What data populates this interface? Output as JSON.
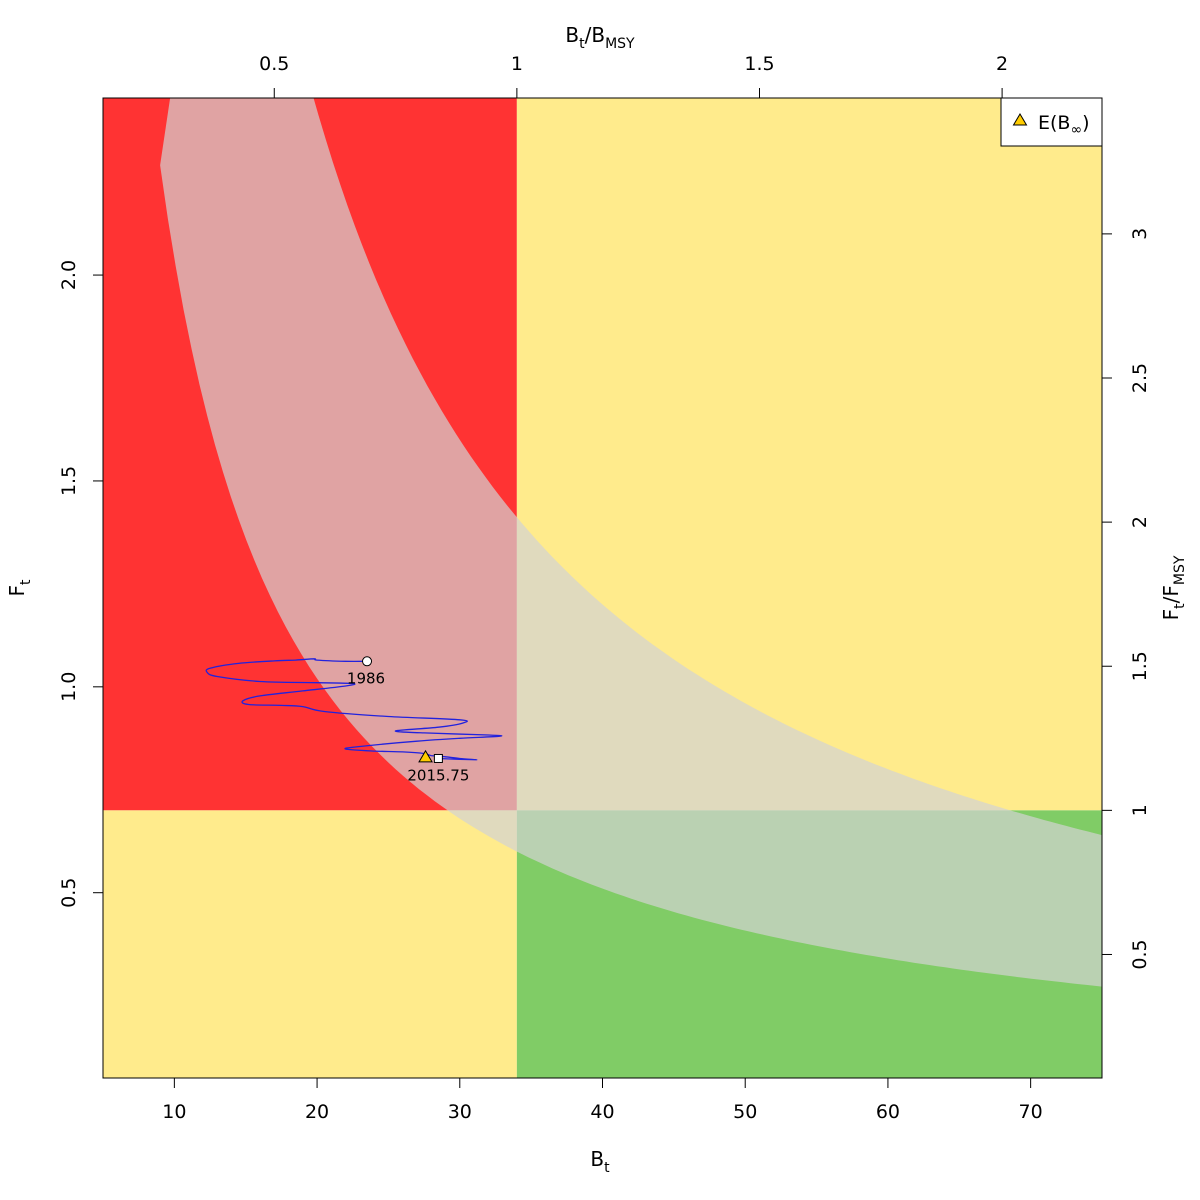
{
  "chart_data": {
    "type": "scatter",
    "title": "",
    "x_bottom": {
      "label_main": "B",
      "label_sub": "t",
      "range": [
        5,
        75
      ],
      "ticks": [
        10,
        20,
        30,
        40,
        50,
        60,
        70
      ],
      "tick_labels": [
        "10",
        "20",
        "30",
        "40",
        "50",
        "60",
        "70"
      ]
    },
    "y_left": {
      "label_main": "F",
      "label_sub": "t",
      "range": [
        0.05,
        2.43
      ],
      "ticks": [
        0.5,
        1.0,
        1.5,
        2.0
      ],
      "tick_labels": [
        "0.5",
        "1.0",
        "1.5",
        "2.0"
      ]
    },
    "x_top": {
      "label_main": "B",
      "label_sub1": "t",
      "label_slash": "/B",
      "label_sub2": "MSY",
      "ticks": [
        0.5,
        1,
        1.5,
        2
      ],
      "tick_labels": [
        "0.5",
        "1",
        "1.5",
        "2"
      ]
    },
    "y_right": {
      "label_main": "F",
      "label_sub1": "t",
      "label_slash": "/F",
      "label_sub2": "MSY",
      "ticks": [
        0.5,
        1,
        1.5,
        2,
        2.5,
        3
      ],
      "tick_labels": [
        "0.5",
        "1",
        "1.5",
        "2",
        "2.5",
        "3"
      ]
    },
    "reference_points": {
      "Bmsy": 34.0,
      "Fmsy": 0.7
    },
    "zones": {
      "overfished_overfishing": "#ff3333",
      "caution": "#ffeb8c",
      "healthy": "#80cc66"
    },
    "msy_band": {
      "color": "#d3d3d3",
      "opacity": 0.7,
      "upper_constant": 48.0,
      "lower_constant": 20.4,
      "x_upper_start": 14.0,
      "x_lower_start": 9.0,
      "x_end": 75
    },
    "trajectory": {
      "color": "#2222dd",
      "points": [
        [
          23.5,
          1.062
        ],
        [
          22.0,
          1.062
        ],
        [
          20.0,
          1.065
        ],
        [
          19.8,
          1.068
        ],
        [
          18.5,
          1.065
        ],
        [
          17.0,
          1.063
        ],
        [
          14.5,
          1.057
        ],
        [
          12.5,
          1.045
        ],
        [
          12.3,
          1.035
        ],
        [
          13.0,
          1.025
        ],
        [
          16.0,
          1.013
        ],
        [
          20.0,
          1.01
        ],
        [
          22.5,
          1.008
        ],
        [
          22.0,
          1.002
        ],
        [
          19.0,
          0.99
        ],
        [
          16.0,
          0.978
        ],
        [
          14.8,
          0.966
        ],
        [
          15.2,
          0.957
        ],
        [
          17.5,
          0.955
        ],
        [
          19.0,
          0.952
        ],
        [
          20.5,
          0.94
        ],
        [
          25.0,
          0.928
        ],
        [
          30.0,
          0.92
        ],
        [
          30.2,
          0.912
        ],
        [
          28.5,
          0.902
        ],
        [
          25.5,
          0.893
        ],
        [
          27.5,
          0.888
        ],
        [
          32.0,
          0.883
        ],
        [
          32.8,
          0.88
        ],
        [
          30.0,
          0.875
        ],
        [
          27.0,
          0.868
        ],
        [
          23.0,
          0.855
        ],
        [
          22.0,
          0.849
        ],
        [
          24.0,
          0.844
        ],
        [
          26.0,
          0.842
        ],
        [
          27.5,
          0.838
        ],
        [
          28.0,
          0.833
        ],
        [
          29.0,
          0.83
        ],
        [
          30.0,
          0.826
        ],
        [
          31.2,
          0.823
        ],
        [
          30.0,
          0.824
        ],
        [
          28.5,
          0.826
        ]
      ]
    },
    "start_point": {
      "x": 23.5,
      "y": 1.062,
      "label": "1986"
    },
    "end_point": {
      "x": 28.5,
      "y": 0.826,
      "label": "2015.75"
    },
    "expected_point": {
      "x": 27.6,
      "y": 0.83,
      "color": "#ffcc00"
    },
    "legend": {
      "position": "top-right",
      "entry_main": "E(B",
      "entry_sub": "∞",
      "entry_close": ")"
    }
  }
}
